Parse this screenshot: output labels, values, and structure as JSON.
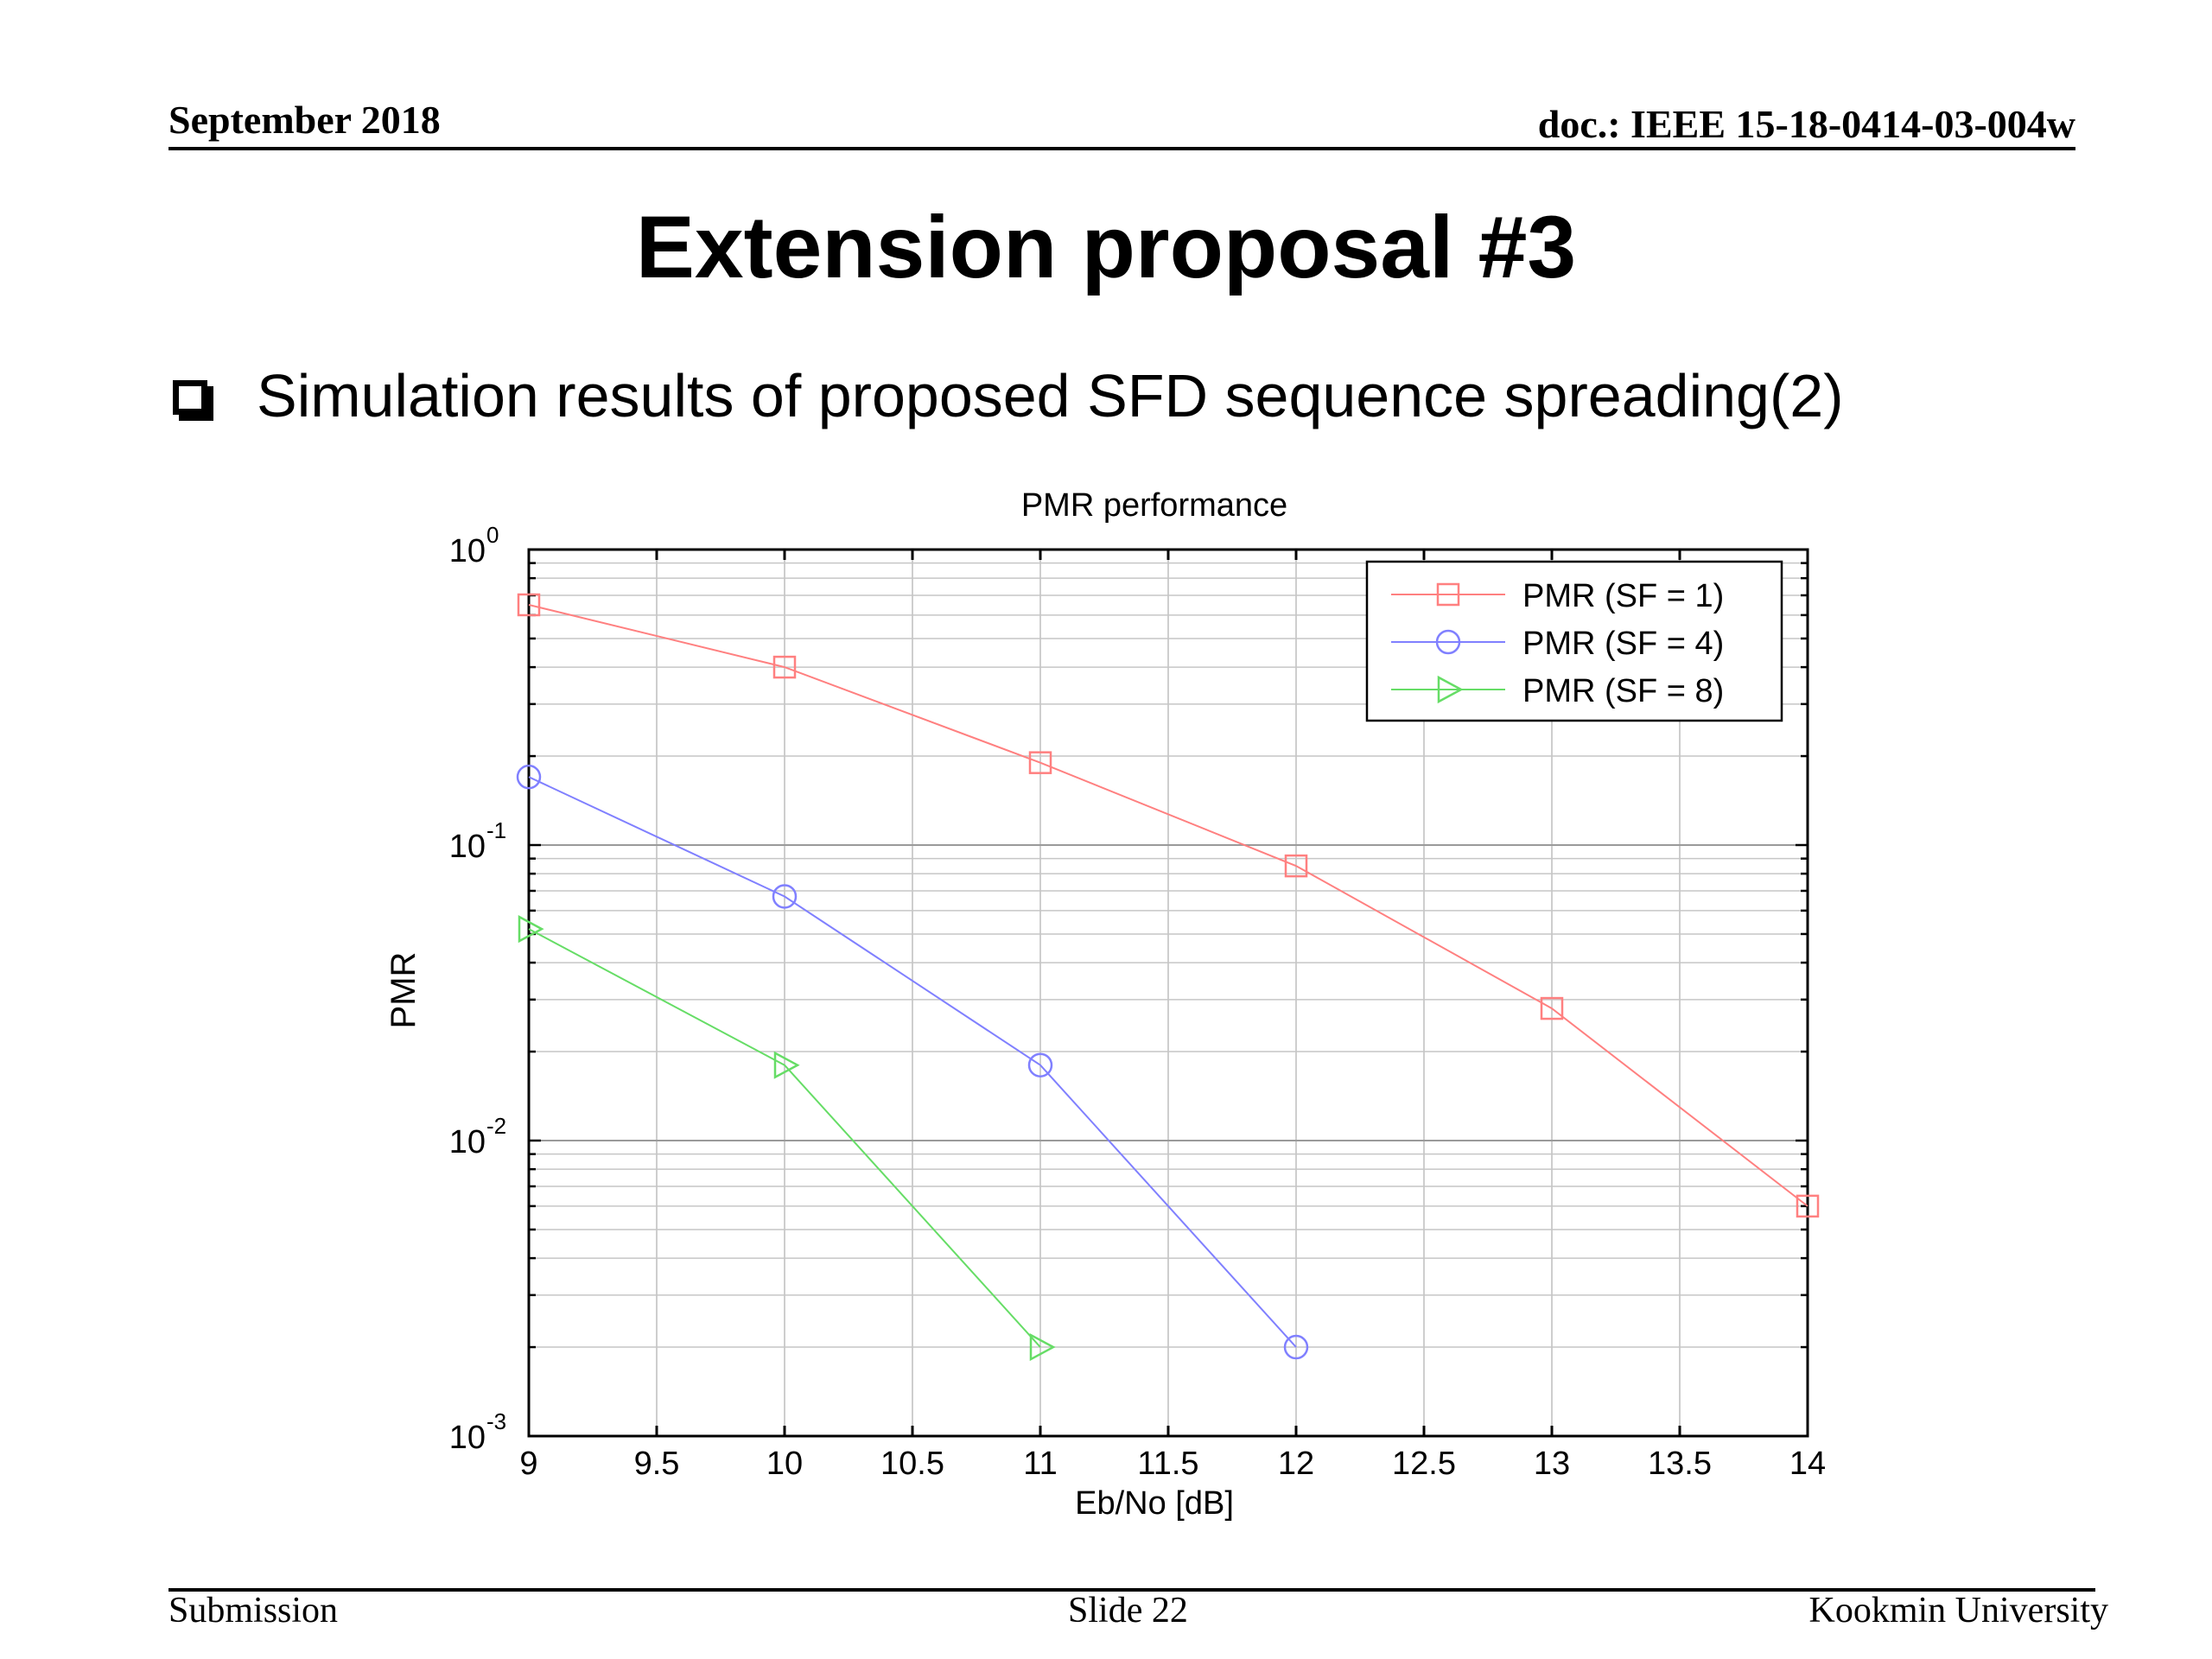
{
  "header": {
    "date": "September 2018",
    "doc_id": "doc.: IEEE 15-18-0414-03-004w"
  },
  "slide": {
    "title": "Extension proposal #3",
    "bullet": "Simulation results of proposed SFD sequence spreading(2)"
  },
  "footer": {
    "left": "Submission",
    "center": "Slide 22",
    "right": "Kookmin University"
  },
  "chart_data": {
    "type": "line",
    "title": "PMR performance",
    "xlabel": "Eb/No [dB]",
    "ylabel": "PMR",
    "xlim": [
      9,
      14
    ],
    "ylim": [
      0.001,
      1
    ],
    "yscale": "log",
    "grid": true,
    "legend_position": "top-right",
    "x_ticks": [
      9,
      9.5,
      10,
      10.5,
      11,
      11.5,
      12,
      12.5,
      13,
      13.5,
      14
    ],
    "x_tick_labels": [
      "9",
      "9.5",
      "10",
      "10.5",
      "11",
      "11.5",
      "12",
      "12.5",
      "13",
      "13.5",
      "14"
    ],
    "y_ticks": [
      {
        "value": 1,
        "base": "10",
        "exp": "0"
      },
      {
        "value": 0.1,
        "base": "10",
        "exp": "-1"
      },
      {
        "value": 0.01,
        "base": "10",
        "exp": "-2"
      },
      {
        "value": 0.001,
        "base": "10",
        "exp": "-3"
      }
    ],
    "series": [
      {
        "name": "PMR (SF = 1)",
        "color": "#ff8080",
        "marker": "square",
        "x": [
          9,
          10,
          11,
          12,
          13,
          14
        ],
        "y": [
          0.65,
          0.4,
          0.19,
          0.085,
          0.028,
          0.006
        ]
      },
      {
        "name": "PMR (SF = 4)",
        "color": "#8080ff",
        "marker": "circle",
        "x": [
          9,
          10,
          11,
          12
        ],
        "y": [
          0.17,
          0.067,
          0.018,
          0.002
        ]
      },
      {
        "name": "PMR (SF = 8)",
        "color": "#66dd66",
        "marker": "triangle-right",
        "x": [
          9,
          10,
          11
        ],
        "y": [
          0.052,
          0.018,
          0.002
        ]
      }
    ]
  }
}
